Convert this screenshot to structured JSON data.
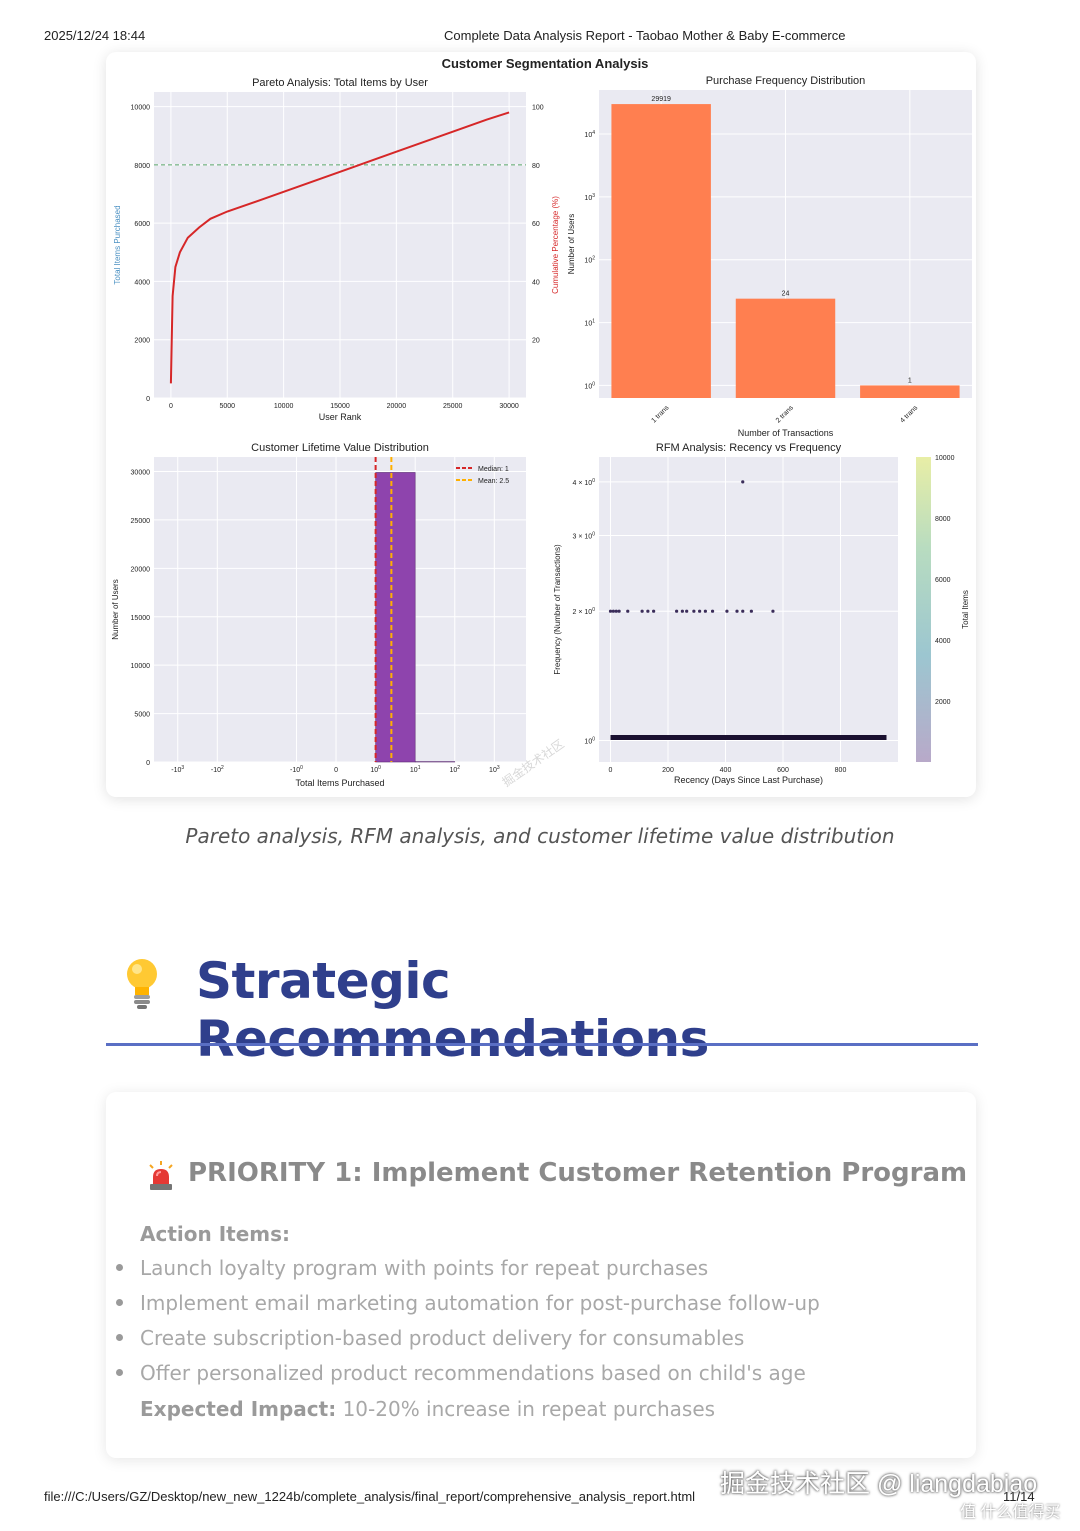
{
  "print_header": {
    "date": "2025/12/24 18:44",
    "title": "Complete Data Analysis Report - Taobao Mother & Baby E-commerce"
  },
  "figure": {
    "suptitle": "Customer Segmentation Analysis",
    "watermark_text": "掘金技术社区"
  },
  "chart_data": [
    {
      "type": "line",
      "title": "Pareto Analysis: Total Items by User",
      "xlabel": "User Rank",
      "ylabel": "Total Items Purchased",
      "y2label": "Cumulative Percentage (%)",
      "xlim": [
        -1500,
        31500
      ],
      "ylim": [
        0,
        10500
      ],
      "y2lim": [
        0,
        105
      ],
      "x_ticks": [
        0,
        5000,
        10000,
        15000,
        20000,
        25000,
        30000
      ],
      "x_tick_labels": [
        "0",
        "5000",
        "10000",
        "15000",
        "20000",
        "25000",
        "30000"
      ],
      "y_ticks": [
        0,
        2000,
        4000,
        6000,
        8000,
        10000
      ],
      "y_tick_labels": [
        "0",
        "2000",
        "4000",
        "6000",
        "8000",
        "10000"
      ],
      "y2_ticks": [
        20,
        40,
        60,
        80,
        100
      ],
      "y2_tick_labels": [
        "20",
        "40",
        "60",
        "80",
        "100"
      ],
      "reference_line_y2": 80,
      "series": [
        {
          "color": "#d62728",
          "x": [
            0,
            150,
            400,
            800,
            1500,
            2500,
            3500,
            5000,
            8000,
            12000,
            16000,
            20000,
            24000,
            28000,
            30000
          ],
          "y": [
            500,
            3500,
            4500,
            5000,
            5500,
            5850,
            6150,
            6400,
            6800,
            7350,
            7900,
            8450,
            9000,
            9550,
            9800
          ]
        }
      ],
      "grid": true
    },
    {
      "type": "bar",
      "title": "Purchase Frequency Distribution",
      "xlabel": "Number of Transactions",
      "ylabel": "Number of Users",
      "y_scale": "log",
      "categories": [
        "1 trans",
        "2 trans",
        "4 trans"
      ],
      "values": [
        29919,
        24,
        1
      ],
      "data_labels": [
        "29919",
        "24",
        "1"
      ],
      "y_tick_labels": [
        "10^0",
        "10^1",
        "10^2",
        "10^3",
        "10^4"
      ],
      "color": "#ff7f50",
      "grid": true
    },
    {
      "type": "bar",
      "title": "Customer Lifetime Value Distribution",
      "xlabel": "Total Items Purchased",
      "ylabel": "Number of Users",
      "x_scale": "symlog",
      "x_tick_labels": [
        "-10^3",
        "-10^2",
        "-10^0",
        "0",
        "10^0",
        "10^1",
        "10^2",
        "10^3"
      ],
      "ylim": [
        0,
        31500
      ],
      "y_ticks": [
        0,
        5000,
        10000,
        15000,
        20000,
        25000,
        30000
      ],
      "y_tick_labels": [
        "0",
        "5000",
        "10000",
        "15000",
        "20000",
        "25000",
        "30000"
      ],
      "bins": [
        {
          "x0": 1,
          "x1": 10,
          "value": 29900
        },
        {
          "x0": 10,
          "x1": 100,
          "value": 40
        }
      ],
      "color": "#8e44ad",
      "vlines": [
        {
          "label": "Median: 1",
          "x": 1,
          "color": "#d62728"
        },
        {
          "label": "Mean: 2.5",
          "x": 2.5,
          "color": "#ffb000"
        }
      ],
      "legend": "top-right",
      "grid": true
    },
    {
      "type": "scatter",
      "title": "RFM Analysis: Recency vs Frequency",
      "xlabel": "Recency (Days Since Last Purchase)",
      "ylabel": "Frequency (Number of Transactions)",
      "colorbar_label": "Total Items",
      "colorbar_ticks": [
        "2000",
        "4000",
        "6000",
        "8000",
        "10000"
      ],
      "x_ticks": [
        0,
        200,
        400,
        600,
        800
      ],
      "x_tick_labels": [
        "0",
        "200",
        "400",
        "600",
        "800"
      ],
      "y_scale": "log",
      "y_tick_labels": [
        "10^0",
        "2 × 10^0",
        "3 × 10^0",
        "4 × 10^0"
      ],
      "xlim": [
        -40,
        1000
      ],
      "points": [
        {
          "x": 0,
          "y": 2
        },
        {
          "x": 10,
          "y": 2
        },
        {
          "x": 20,
          "y": 2
        },
        {
          "x": 30,
          "y": 2
        },
        {
          "x": 60,
          "y": 2
        },
        {
          "x": 110,
          "y": 2
        },
        {
          "x": 130,
          "y": 2
        },
        {
          "x": 150,
          "y": 2
        },
        {
          "x": 230,
          "y": 2
        },
        {
          "x": 250,
          "y": 2
        },
        {
          "x": 265,
          "y": 2
        },
        {
          "x": 290,
          "y": 2
        },
        {
          "x": 310,
          "y": 2
        },
        {
          "x": 330,
          "y": 2
        },
        {
          "x": 355,
          "y": 2
        },
        {
          "x": 405,
          "y": 2
        },
        {
          "x": 440,
          "y": 2
        },
        {
          "x": 460,
          "y": 2
        },
        {
          "x": 490,
          "y": 2
        },
        {
          "x": 565,
          "y": 2
        },
        {
          "x": 460,
          "y": 4
        }
      ],
      "dense_band": {
        "y": 1,
        "x_from": 0,
        "x_to": 960
      },
      "grid": true
    }
  ],
  "caption": "Pareto analysis, RFM analysis, and customer lifetime value distribution",
  "section": {
    "title": "Strategic Recommendations",
    "icon": "lightbulb-icon",
    "rule_color": "#5a6fc4",
    "title_color": "#2f3f8c"
  },
  "priority": {
    "icon": "siren-icon",
    "title": "PRIORITY 1: Implement Customer Retention Program",
    "action_label": "Action Items:",
    "items": [
      "Launch loyalty program with points for repeat purchases",
      "Implement email marketing automation for post-purchase follow-up",
      "Create subscription-based product delivery for consumables",
      "Offer personalized product recommendations based on child's age"
    ],
    "impact_label": "Expected Impact:",
    "impact_value": " 10-20% increase in repeat purchases"
  },
  "print_footer": {
    "path": "file:///C:/Users/GZ/Desktop/new_new_1224b/complete_analysis/final_report/comprehensive_analysis_report.html",
    "page": "11/14"
  },
  "watermarks": {
    "main": "掘金技术社区 @ liangdabiao",
    "secondary": "值 什么值得买"
  }
}
